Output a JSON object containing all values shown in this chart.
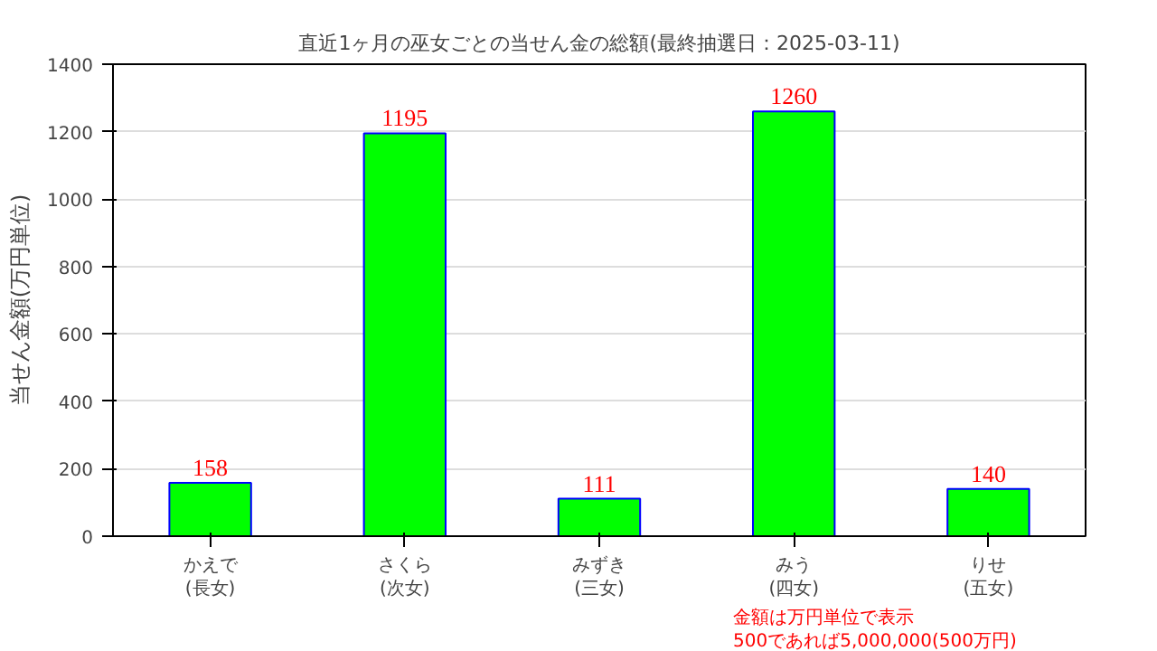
{
  "chart_data": {
    "type": "bar",
    "title": "直近1ヶ月の巫女ごとの当せん金の総額(最終抽選日：2025-03-11)",
    "ylabel": "当せん金額(万円単位)",
    "categories": [
      "かえで\n(長女)",
      "さくら\n(次女)",
      "みずき\n(三女)",
      "みう\n(四女)",
      "りせ\n(五女)"
    ],
    "values": [
      158,
      1195,
      111,
      1260,
      140
    ],
    "color": "#00ff00",
    "data_labels": true,
    "ylim": [
      0,
      1400
    ],
    "yticks": [
      0,
      200,
      400,
      600,
      800,
      1000,
      1200,
      1400
    ],
    "grid": "y",
    "annotations": [
      "金額は万円単位で表示",
      "500であれば5,000,000(500万円)"
    ]
  }
}
